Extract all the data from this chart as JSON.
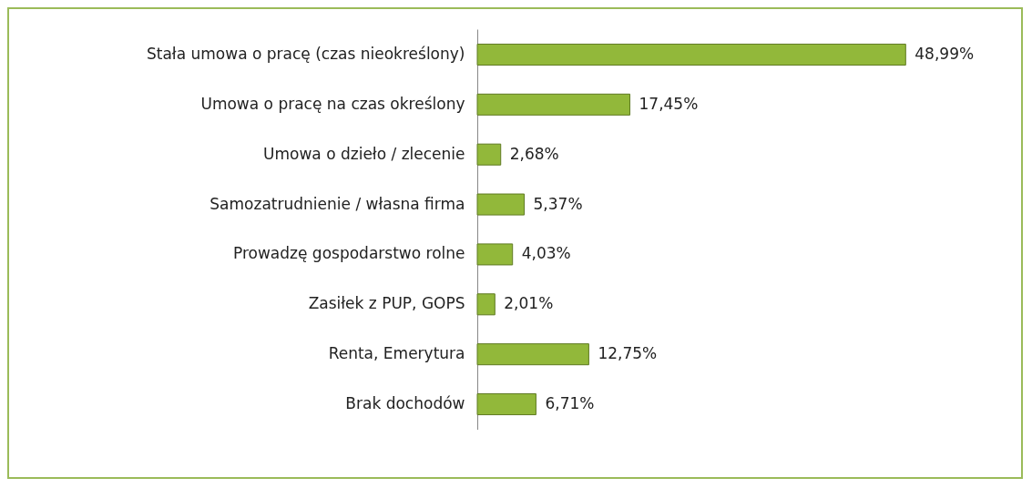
{
  "chart_data": {
    "type": "bar",
    "orientation": "horizontal",
    "categories": [
      "Stała umowa o pracę (czas nieokreślony)",
      "Umowa o pracę na czas określony",
      "Umowa o dzieło / zlecenie",
      "Samozatrudnienie / własna firma",
      "Prowadzę gospodarstwo rolne",
      "Zasiłek z PUP, GOPS",
      "Renta, Emerytura",
      "Brak dochodów"
    ],
    "values": [
      48.99,
      17.45,
      2.68,
      5.37,
      4.03,
      2.01,
      12.75,
      6.71
    ],
    "value_labels": [
      "48,99%",
      "17,45%",
      "2,68%",
      "5,37%",
      "4,03%",
      "2,01%",
      "12,75%",
      "6,71%"
    ],
    "color": "#92b83a"
  }
}
